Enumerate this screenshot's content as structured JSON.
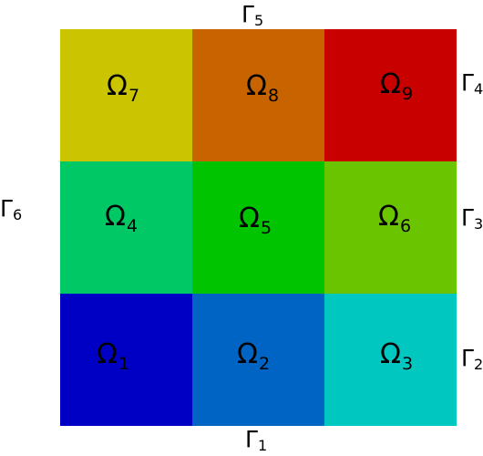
{
  "regions": [
    {
      "symbol": "Ω",
      "index": "7",
      "color": "#cac500"
    },
    {
      "symbol": "Ω",
      "index": "8",
      "color": "#c86400"
    },
    {
      "symbol": "Ω",
      "index": "9",
      "color": "#c80000"
    },
    {
      "symbol": "Ω",
      "index": "4",
      "color": "#00c864"
    },
    {
      "symbol": "Ω",
      "index": "5",
      "color": "#00c400"
    },
    {
      "symbol": "Ω",
      "index": "6",
      "color": "#6ac400"
    },
    {
      "symbol": "Ω",
      "index": "1",
      "color": "#0000c4"
    },
    {
      "symbol": "Ω",
      "index": "2",
      "color": "#0064c4"
    },
    {
      "symbol": "Ω",
      "index": "3",
      "color": "#00c8c0"
    }
  ],
  "boundaries": [
    {
      "symbol": "Γ",
      "index": "5"
    },
    {
      "symbol": "Γ",
      "index": "4"
    },
    {
      "symbol": "Γ",
      "index": "6"
    },
    {
      "symbol": "Γ",
      "index": "3"
    },
    {
      "symbol": "Γ",
      "index": "2"
    },
    {
      "symbol": "Γ",
      "index": "1"
    }
  ]
}
